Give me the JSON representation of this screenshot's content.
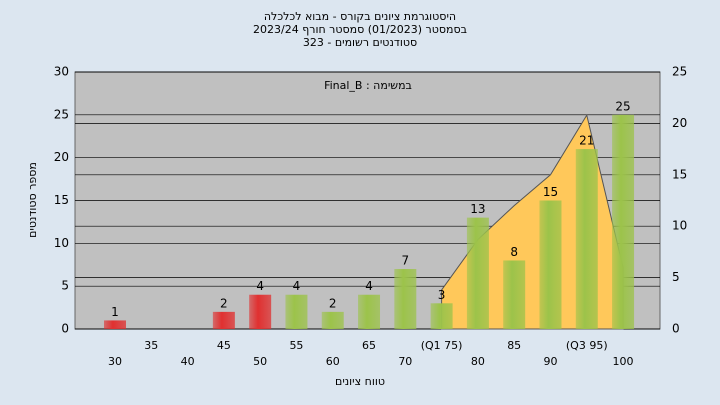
{
  "chart_data": {
    "type": "bar",
    "title": "היסטוגרמת ציונים בקורס - מבוא לכלכלה",
    "subtitle": "בסמסטר (01/2023) סמסטר חורף 2023/24",
    "subtitle2": "סטודנטים רשומים - 323",
    "annotation": "Final_B : במשימה",
    "y_label": "מספר סטודנטים",
    "x_label": "טווח ציונים",
    "categories": [
      "30",
      "35",
      "40",
      "45",
      "50",
      "55",
      "60",
      "65",
      "70",
      "(Q1 75)",
      "80",
      "85",
      "90",
      "(Q3 95)",
      "100"
    ],
    "series": [
      {
        "values": [
          1,
          null,
          null,
          2,
          4,
          4,
          2,
          4,
          7,
          3,
          13,
          8,
          15,
          21,
          25
        ],
        "colors": [
          "#e03030",
          null,
          null,
          "#e03030",
          "#e03030",
          "#9cc34a",
          "#9cc34a",
          "#9cc34a",
          "#9cc34a",
          "#9cc34a",
          "#9cc34a",
          "#9cc34a",
          "#9cc34a",
          "#9cc34a",
          "#9cc34a"
        ]
      },
      {
        "type": "area",
        "axis": "y2",
        "color": "#ffc85a",
        "values": [
          null,
          null,
          null,
          null,
          null,
          null,
          null,
          null,
          null,
          3.8,
          8.7,
          12,
          15,
          20.8,
          6
        ]
      }
    ],
    "ylim": [
      0,
      30
    ],
    "yticks": [
      0,
      5,
      10,
      15,
      20,
      25,
      30
    ],
    "y2lim": [
      0,
      25
    ],
    "y2ticks": [
      0,
      5,
      10,
      15,
      20,
      25
    ],
    "grid": true
  }
}
